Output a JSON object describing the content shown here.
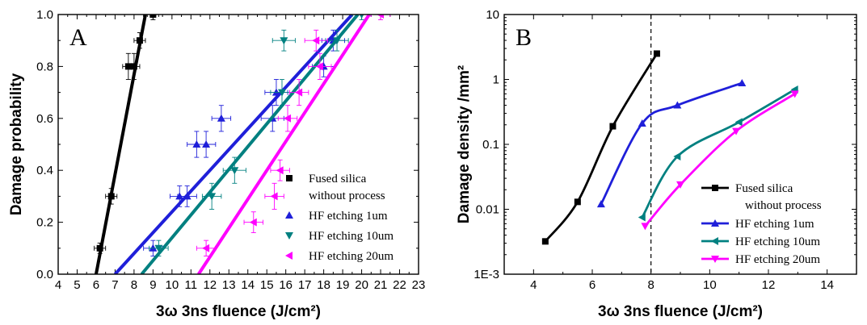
{
  "chart_data": [
    {
      "panel_label": "A",
      "type": "scatter",
      "xlabel": "3ω 3ns fluence (J/cm²)",
      "ylabel": "Damage probability",
      "xlim": [
        4,
        23
      ],
      "ylim": [
        0,
        1
      ],
      "x_ticks": [
        "4",
        "5",
        "6",
        "7",
        "8",
        "9",
        "10",
        "11",
        "12",
        "13",
        "14",
        "15",
        "16",
        "17",
        "18",
        "19",
        "20",
        "21",
        "22",
        "23"
      ],
      "y_ticks": [
        "0.0",
        "0.2",
        "0.4",
        "0.6",
        "0.8",
        "1.0"
      ],
      "legend_position": "lower-right",
      "series": [
        {
          "name": "Fused silica\nwithout process",
          "legend_lines": [
            "Fused silica",
            "without process"
          ],
          "marker": "square",
          "color": "#000000",
          "points": [
            [
              6.2,
              0.1
            ],
            [
              6.8,
              0.3
            ],
            [
              7.7,
              0.8
            ],
            [
              8.0,
              0.8
            ],
            [
              8.3,
              0.9
            ],
            [
              9.0,
              1.0
            ]
          ],
          "xerr": [
            0.3,
            0.3,
            0.3,
            0.3,
            0.3,
            0.3
          ],
          "yerr": [
            0.02,
            0.03,
            0.05,
            0.05,
            0.03,
            0.02
          ],
          "fit_line": [
            [
              6.0,
              0.0
            ],
            [
              8.6,
              1.0
            ]
          ]
        },
        {
          "name": "HF etching 1um",
          "marker": "triangle-up",
          "color": "#1f1fd9",
          "points": [
            [
              9.0,
              0.1
            ],
            [
              10.4,
              0.3
            ],
            [
              10.8,
              0.3
            ],
            [
              11.3,
              0.5
            ],
            [
              11.8,
              0.5
            ],
            [
              12.6,
              0.6
            ],
            [
              15.5,
              0.7
            ],
            [
              15.3,
              0.6
            ],
            [
              18.5,
              0.9
            ],
            [
              18.0,
              0.8
            ]
          ],
          "xerr": [
            0.5,
            0.5,
            0.5,
            0.5,
            0.5,
            0.5,
            0.6,
            0.6,
            0.6,
            0.6
          ],
          "yerr": [
            0.03,
            0.04,
            0.04,
            0.05,
            0.05,
            0.05,
            0.05,
            0.05,
            0.04,
            0.04
          ],
          "fit_line": [
            [
              7.0,
              0.0
            ],
            [
              19.5,
              1.0
            ]
          ]
        },
        {
          "name": "HF etching 10um",
          "marker": "triangle-down",
          "color": "#008080",
          "points": [
            [
              9.3,
              0.1
            ],
            [
              12.1,
              0.3
            ],
            [
              13.3,
              0.4
            ],
            [
              15.8,
              0.7
            ],
            [
              15.9,
              0.9
            ],
            [
              18.7,
              0.9
            ],
            [
              20.0,
              1.0
            ]
          ],
          "xerr": [
            0.5,
            0.5,
            0.6,
            0.6,
            0.6,
            0.6,
            0.5
          ],
          "yerr": [
            0.03,
            0.05,
            0.05,
            0.05,
            0.04,
            0.04,
            0.02
          ],
          "fit_line": [
            [
              8.4,
              0.0
            ],
            [
              19.8,
              1.0
            ]
          ]
        },
        {
          "name": "HF etching 20um",
          "marker": "triangle-left",
          "color": "#ff00ff",
          "points": [
            [
              11.8,
              0.1
            ],
            [
              14.3,
              0.2
            ],
            [
              15.4,
              0.3
            ],
            [
              15.7,
              0.4
            ],
            [
              16.1,
              0.6
            ],
            [
              16.7,
              0.7
            ],
            [
              17.8,
              0.8
            ],
            [
              17.6,
              0.9
            ],
            [
              21.0,
              1.0
            ]
          ],
          "xerr": [
            0.5,
            0.5,
            0.5,
            0.5,
            0.5,
            0.5,
            0.6,
            0.6,
            0.5
          ],
          "yerr": [
            0.03,
            0.04,
            0.05,
            0.04,
            0.05,
            0.05,
            0.05,
            0.04,
            0.02
          ],
          "fit_line": [
            [
              11.4,
              0.0
            ],
            [
              20.4,
              1.0
            ]
          ]
        }
      ]
    },
    {
      "panel_label": "B",
      "type": "line",
      "xlabel": "3ω 3ns fluence (J/cm²)",
      "ylabel": "Damage density /mm²",
      "xlim": [
        3,
        15
      ],
      "ylim": [
        0.001,
        10
      ],
      "yscale": "log",
      "x_ticks": [
        "4",
        "6",
        "8",
        "10",
        "12",
        "14"
      ],
      "y_ticks": [
        "1E-3",
        "0.01",
        "0.1",
        "1",
        "10"
      ],
      "reference_line_x": 8,
      "legend_position": "lower-right",
      "series": [
        {
          "name": "Fused silica\nwithout process",
          "legend_lines": [
            "Fused silica",
            "without process"
          ],
          "marker": "square",
          "color": "#000000",
          "x": [
            4.4,
            5.5,
            6.7,
            8.2
          ],
          "y": [
            0.0032,
            0.013,
            0.19,
            2.5
          ]
        },
        {
          "name": "HF etching 1um",
          "marker": "triangle-up",
          "color": "#1f1fd9",
          "x": [
            6.3,
            7.7,
            8.9,
            11.1
          ],
          "y": [
            0.012,
            0.21,
            0.4,
            0.88
          ]
        },
        {
          "name": "HF etching 10um",
          "marker": "triangle-left",
          "color": "#008080",
          "x": [
            7.7,
            8.9,
            11.0,
            12.9
          ],
          "y": [
            0.0075,
            0.065,
            0.22,
            0.7
          ]
        },
        {
          "name": "HF etching 20um",
          "marker": "triangle-down",
          "color": "#ff00ff",
          "x": [
            7.8,
            9.0,
            10.9,
            12.9
          ],
          "y": [
            0.0055,
            0.024,
            0.16,
            0.6
          ]
        }
      ]
    }
  ]
}
